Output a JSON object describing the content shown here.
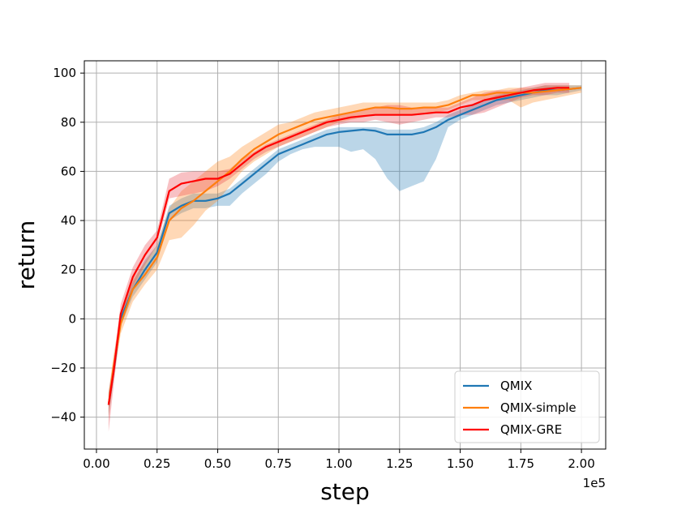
{
  "chart_data": {
    "type": "line",
    "xlabel": "step",
    "ylabel": "return",
    "x_offset_label": "1e5",
    "xlim": [
      -0.05,
      2.1
    ],
    "ylim": [
      -53,
      105
    ],
    "grid": true,
    "legend_position": "lower-right",
    "xticks": [
      0.0,
      0.25,
      0.5,
      0.75,
      1.0,
      1.25,
      1.5,
      1.75,
      2.0
    ],
    "xtick_labels": [
      "0.00",
      "0.25",
      "0.50",
      "0.75",
      "1.00",
      "1.25",
      "1.50",
      "1.75",
      "2.00"
    ],
    "yticks": [
      -40,
      -20,
      0,
      20,
      40,
      60,
      80,
      100
    ],
    "ytick_labels": [
      "−40",
      "−20",
      "0",
      "20",
      "40",
      "60",
      "80",
      "100"
    ],
    "series": [
      {
        "name": "QMIX",
        "color": "#1f77b4",
        "band_color": "#1f77b4",
        "x": [
          0.05,
          0.07,
          0.1,
          0.15,
          0.2,
          0.25,
          0.3,
          0.35,
          0.4,
          0.45,
          0.5,
          0.55,
          0.6,
          0.65,
          0.7,
          0.75,
          0.8,
          0.85,
          0.9,
          0.95,
          1.0,
          1.05,
          1.1,
          1.15,
          1.2,
          1.25,
          1.3,
          1.35,
          1.4,
          1.45,
          1.5,
          1.55,
          1.6,
          1.65,
          1.7,
          1.75,
          1.8,
          1.85,
          1.9,
          1.95,
          2.0
        ],
        "y": [
          -35,
          -22,
          0,
          12,
          20,
          27,
          43,
          46,
          48,
          48,
          49,
          51,
          55,
          59,
          63,
          67,
          69,
          71,
          73,
          75,
          76,
          76.5,
          77,
          76.5,
          75,
          75,
          75,
          76,
          78,
          81,
          83,
          85,
          87,
          89,
          90,
          91,
          92,
          93,
          93,
          93.5,
          94
        ],
        "upper": [
          -30,
          -18,
          2,
          15,
          24,
          30,
          46,
          49,
          51,
          51,
          51,
          53,
          57,
          61,
          65,
          69,
          71,
          73,
          75,
          77,
          78,
          78,
          78,
          78,
          77,
          77,
          77,
          78,
          80,
          83,
          85,
          87,
          89,
          91,
          92,
          93,
          94,
          95,
          95,
          95,
          95
        ],
        "lower": [
          -40,
          -25,
          -3,
          9,
          16,
          23,
          40,
          43,
          45,
          45,
          46,
          46,
          51,
          55,
          59,
          64,
          67,
          69,
          70,
          70,
          70,
          68,
          69,
          65,
          57,
          52,
          54,
          56,
          65,
          78,
          81,
          83,
          85,
          87,
          88,
          89,
          90,
          91,
          91,
          92,
          93
        ]
      },
      {
        "name": "QMIX-simple",
        "color": "#ff7f0e",
        "band_color": "#ff7f0e",
        "x": [
          0.05,
          0.07,
          0.1,
          0.15,
          0.2,
          0.25,
          0.3,
          0.35,
          0.4,
          0.45,
          0.5,
          0.55,
          0.6,
          0.65,
          0.7,
          0.75,
          0.8,
          0.85,
          0.9,
          0.95,
          1.0,
          1.05,
          1.1,
          1.15,
          1.2,
          1.25,
          1.3,
          1.35,
          1.4,
          1.45,
          1.5,
          1.55,
          1.6,
          1.65,
          1.7,
          1.75,
          1.8,
          1.85,
          1.9,
          1.95,
          2.0
        ],
        "y": [
          -35,
          -20,
          -2,
          12,
          18,
          25,
          40,
          45,
          48,
          52,
          56,
          60,
          65,
          69,
          72,
          75,
          77,
          79,
          81,
          82,
          83,
          84,
          85,
          86,
          86,
          85.5,
          85.5,
          86,
          86,
          87,
          89,
          91,
          91,
          92,
          92,
          92,
          92,
          92.5,
          93,
          93.5,
          94
        ],
        "upper": [
          -30,
          -15,
          2,
          16,
          23,
          30,
          45,
          52,
          56,
          60,
          64,
          66,
          70,
          73,
          76,
          79,
          80,
          82,
          84,
          85,
          86,
          87,
          88,
          88,
          88,
          88,
          88,
          88,
          88,
          89,
          91,
          92,
          93,
          93,
          94,
          94,
          94,
          95,
          95,
          95,
          95
        ],
        "lower": [
          -40,
          -25,
          -6,
          7,
          14,
          20,
          32,
          33,
          38,
          44,
          48,
          54,
          60,
          64,
          67,
          70,
          72,
          74,
          76,
          78,
          80,
          81,
          82,
          83,
          83,
          83,
          83,
          84,
          84,
          85,
          87,
          89,
          89,
          89,
          89,
          86,
          88,
          89,
          90,
          91,
          92
        ]
      },
      {
        "name": "QMIX-GRE",
        "color": "#ff0000",
        "band_color": "#e8323c",
        "x": [
          0.05,
          0.07,
          0.1,
          0.15,
          0.2,
          0.25,
          0.3,
          0.35,
          0.4,
          0.45,
          0.5,
          0.55,
          0.6,
          0.65,
          0.7,
          0.75,
          0.8,
          0.85,
          0.9,
          0.95,
          1.0,
          1.05,
          1.1,
          1.15,
          1.2,
          1.25,
          1.3,
          1.35,
          1.4,
          1.45,
          1.5,
          1.55,
          1.6,
          1.65,
          1.7,
          1.75,
          1.8,
          1.85,
          1.9,
          1.95
        ],
        "y": [
          -35,
          -22,
          2,
          17,
          26,
          33,
          52,
          55,
          56,
          57,
          57,
          59,
          63,
          67,
          70,
          72,
          74,
          76,
          78,
          80,
          81,
          82,
          82.5,
          83,
          83,
          83,
          83,
          83.5,
          84,
          84,
          86,
          87,
          89,
          90,
          91,
          92,
          93,
          93.5,
          94,
          94
        ],
        "upper": [
          -30,
          -17,
          6,
          21,
          30,
          36,
          57,
          59.5,
          60,
          60,
          60,
          61,
          65,
          68,
          71,
          73,
          75,
          77,
          79,
          81,
          83,
          84,
          85,
          86,
          87,
          87,
          86,
          86,
          86,
          86,
          88,
          90,
          92,
          93,
          93,
          94,
          95,
          96,
          96,
          96
        ],
        "lower": [
          -46,
          -28,
          -2,
          13,
          22,
          30,
          49,
          50,
          51,
          52,
          54,
          57,
          61,
          65,
          68,
          70,
          72,
          74,
          76,
          78,
          79,
          80,
          80,
          81,
          80,
          79,
          80,
          81,
          82,
          82,
          83,
          83,
          84,
          86,
          88,
          90,
          91,
          91,
          92,
          92
        ]
      }
    ]
  }
}
